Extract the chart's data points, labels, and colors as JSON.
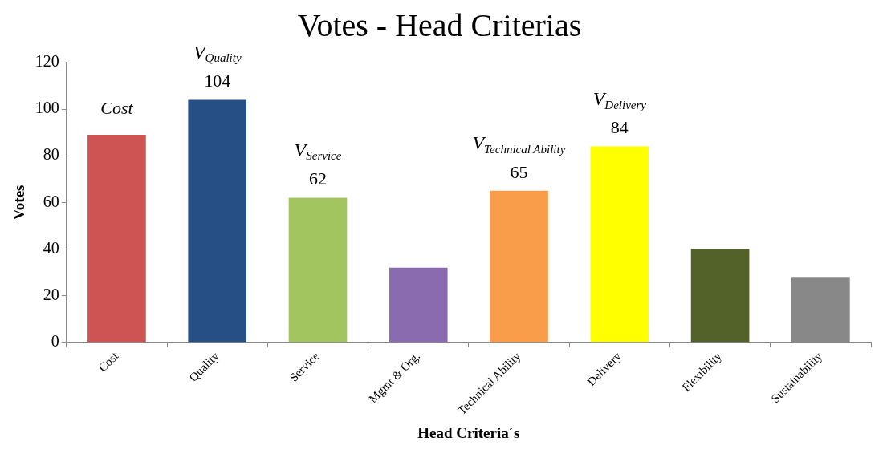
{
  "chart_data": {
    "type": "bar",
    "title": "Votes - Head Criterias",
    "xlabel": "Head Criteria´s",
    "ylabel": "Votes",
    "categories": [
      "Cost",
      "Quality",
      "Service",
      "Mgmt & Org.",
      "Technical Ability",
      "Delivery",
      "Flexibility",
      "Sustainability"
    ],
    "values": [
      89,
      104,
      62,
      32,
      65,
      84,
      40,
      28
    ],
    "colors": [
      "#cd5452",
      "#254f85",
      "#a3c55f",
      "#8a6bb0",
      "#f99d4b",
      "#ffff00",
      "#526229",
      "#888888"
    ],
    "value_labels": [
      null,
      "104",
      "62",
      null,
      "65",
      "84",
      null,
      null
    ],
    "ylim": [
      0,
      120
    ],
    "yticks": [
      0,
      20,
      40,
      60,
      80,
      100,
      120
    ],
    "annotations": [
      "Cost",
      "V$_{Quality}$",
      "V$_{Service}$",
      "V$_{Technical Ability}$",
      "V$_{Delivery}$"
    ]
  }
}
